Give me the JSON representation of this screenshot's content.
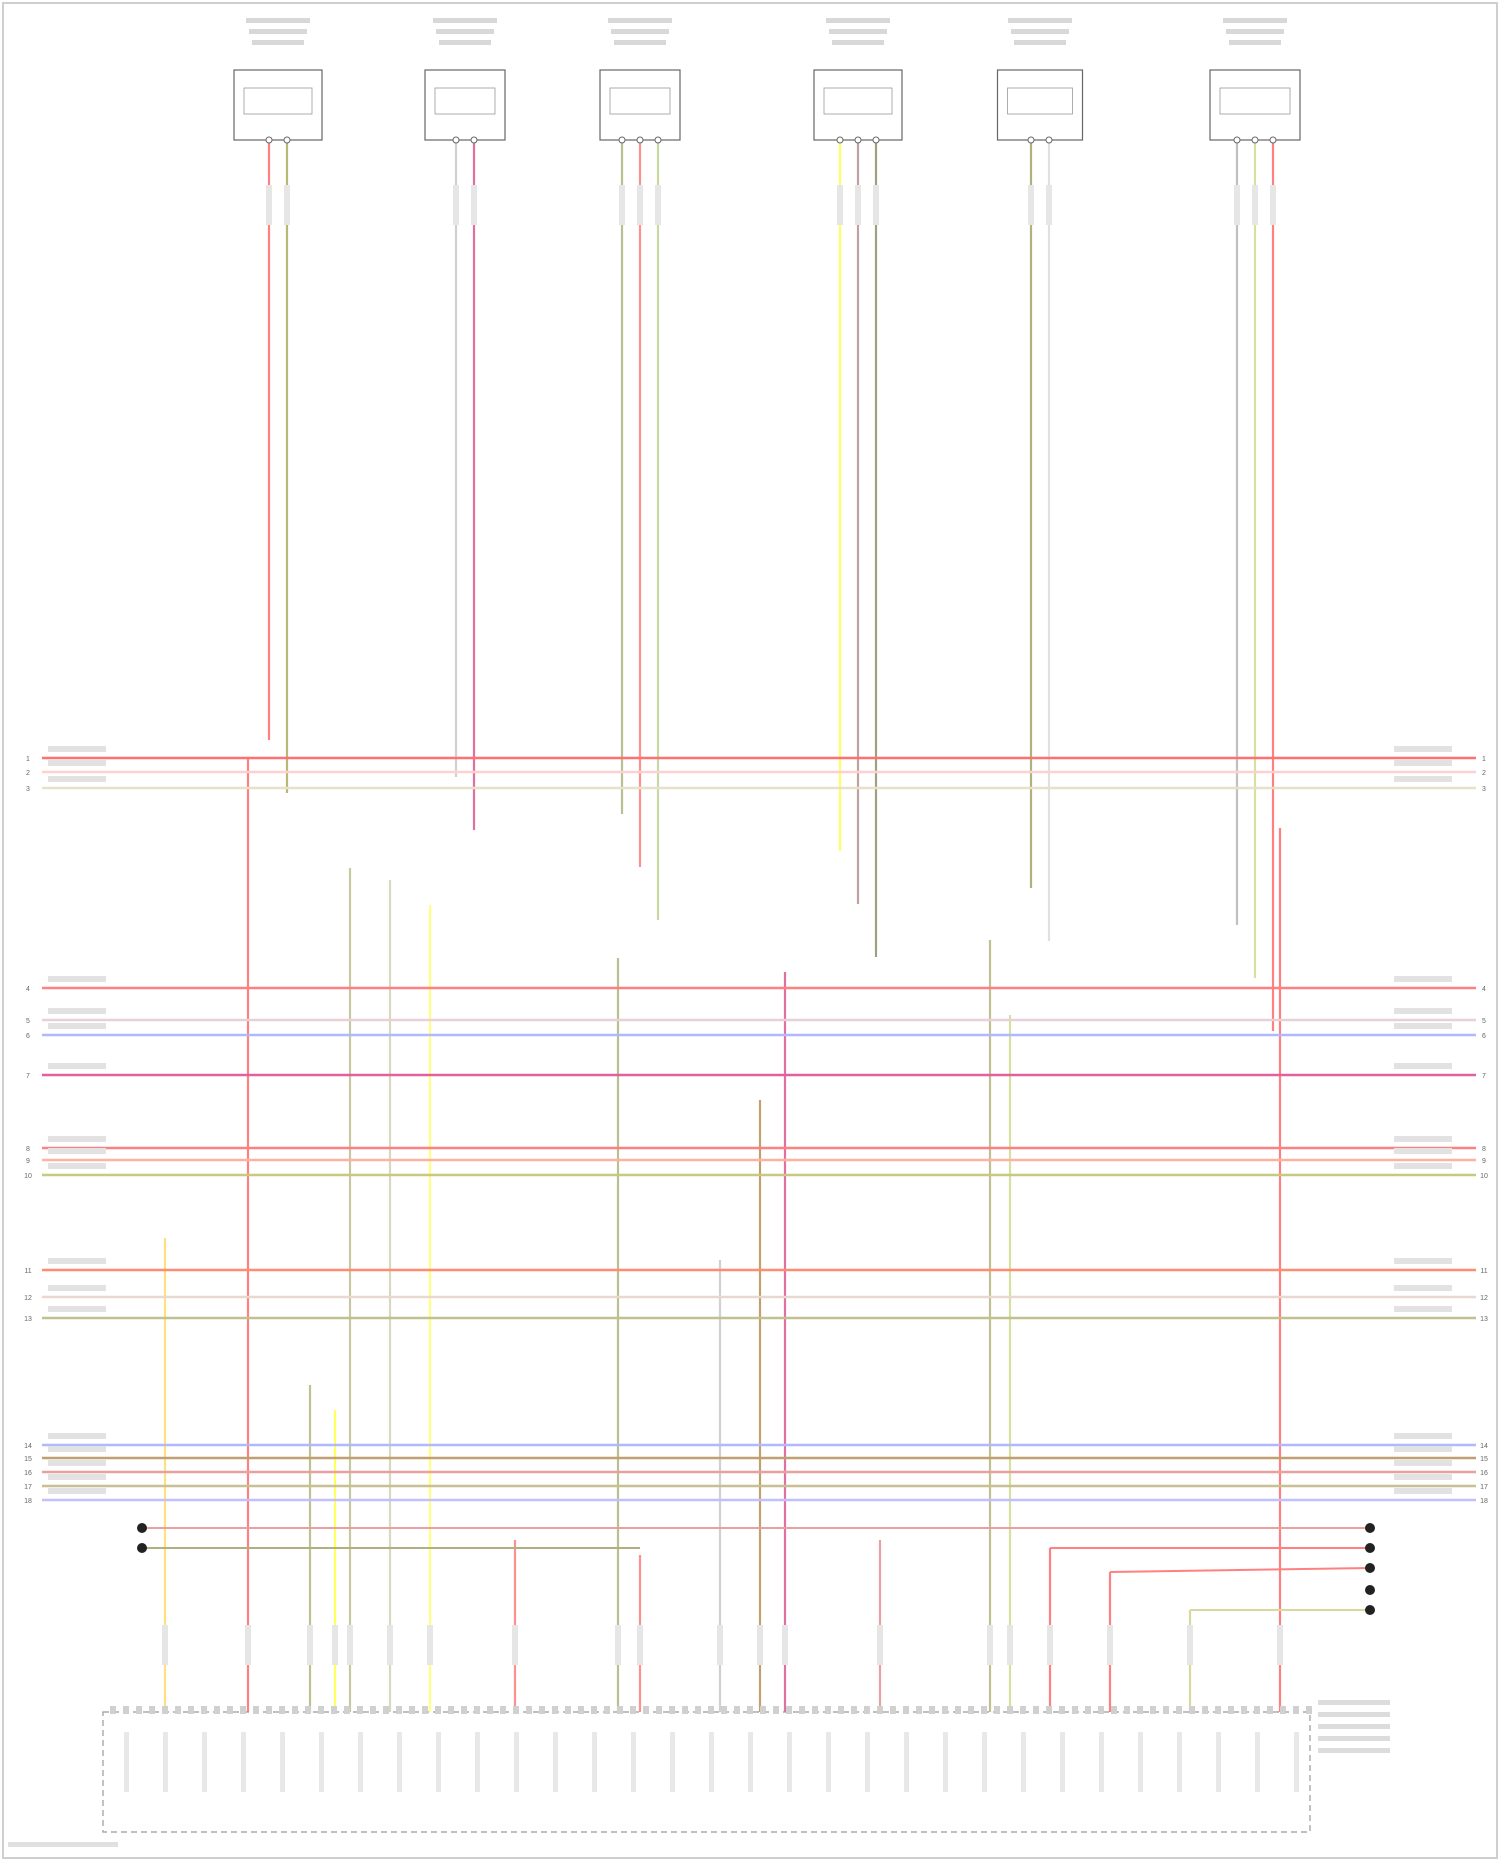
{
  "diagram": {
    "sensors": [
      {
        "name": "sensor-1",
        "label": "",
        "colors": [
          "#ff8080",
          "#b8b870"
        ]
      },
      {
        "name": "sensor-2",
        "label": "",
        "colors": [
          "#d0d0d0",
          "#e070a0"
        ]
      },
      {
        "name": "sensor-3",
        "label": "",
        "colors": [
          "#b8c090",
          "#ff9090",
          "#c8d8a0"
        ]
      },
      {
        "name": "sensor-4",
        "label": "",
        "colors": [
          "#ffff60",
          "#c0a0a0",
          "#a0a080"
        ]
      },
      {
        "name": "sensor-5",
        "label": "",
        "colors": [
          "#b0b080",
          "#e0e0e0"
        ]
      },
      {
        "name": "sensor-6",
        "label": "",
        "colors": [
          "#c0c0c0",
          "#d8e0a0",
          "#ff8080"
        ]
      }
    ],
    "bus_groups": [
      {
        "rows": [
          {
            "n": "1",
            "color": "#ff7070"
          },
          {
            "n": "2",
            "color": "#ffd0d0"
          },
          {
            "n": "3",
            "color": "#e8e0c8"
          }
        ]
      },
      {
        "rows": [
          {
            "n": "4",
            "color": "#ff8080"
          },
          {
            "n": "5",
            "color": "#e8d0d8"
          },
          {
            "n": "6",
            "color": "#b0b8ff"
          },
          {
            "n": "7",
            "color": "#e060a0"
          }
        ]
      },
      {
        "rows": [
          {
            "n": "8",
            "color": "#ff8080"
          },
          {
            "n": "9",
            "color": "#ffb0a0"
          },
          {
            "n": "10",
            "color": "#c8c880"
          }
        ]
      },
      {
        "rows": [
          {
            "n": "11",
            "color": "#ff8c70"
          },
          {
            "n": "12",
            "color": "#e8d8d0"
          },
          {
            "n": "13",
            "color": "#c0c090"
          }
        ]
      },
      {
        "rows": [
          {
            "n": "14",
            "color": "#b0b8ff"
          },
          {
            "n": "15",
            "color": "#c0a070"
          },
          {
            "n": "16",
            "color": "#e8a0a0"
          },
          {
            "n": "17",
            "color": "#c8c090"
          },
          {
            "n": "18",
            "color": "#c0c0ff"
          }
        ]
      }
    ],
    "ecm_label": "",
    "footer": ""
  }
}
